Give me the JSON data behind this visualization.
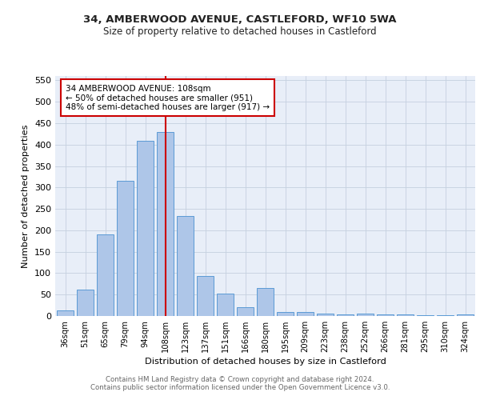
{
  "title1": "34, AMBERWOOD AVENUE, CASTLEFORD, WF10 5WA",
  "title2": "Size of property relative to detached houses in Castleford",
  "xlabel": "Distribution of detached houses by size in Castleford",
  "ylabel": "Number of detached properties",
  "categories": [
    "36sqm",
    "51sqm",
    "65sqm",
    "79sqm",
    "94sqm",
    "108sqm",
    "123sqm",
    "137sqm",
    "151sqm",
    "166sqm",
    "180sqm",
    "195sqm",
    "209sqm",
    "223sqm",
    "238sqm",
    "252sqm",
    "266sqm",
    "281sqm",
    "295sqm",
    "310sqm",
    "324sqm"
  ],
  "values": [
    13,
    61,
    190,
    315,
    408,
    430,
    233,
    93,
    52,
    20,
    65,
    10,
    10,
    6,
    4,
    5,
    3,
    3,
    2,
    1,
    4
  ],
  "bar_color": "#aec6e8",
  "bar_edge_color": "#5b9bd5",
  "highlight_index": 5,
  "vline_color": "#cc0000",
  "annotation_line1": "34 AMBERWOOD AVENUE: 108sqm",
  "annotation_line2": "← 50% of detached houses are smaller (951)",
  "annotation_line3": "48% of semi-detached houses are larger (917) →",
  "annotation_box_color": "#cc0000",
  "ylim": [
    0,
    560
  ],
  "yticks": [
    0,
    50,
    100,
    150,
    200,
    250,
    300,
    350,
    400,
    450,
    500,
    550
  ],
  "footer1": "Contains HM Land Registry data © Crown copyright and database right 2024.",
  "footer2": "Contains public sector information licensed under the Open Government Licence v3.0.",
  "background_color": "#e8eef8"
}
